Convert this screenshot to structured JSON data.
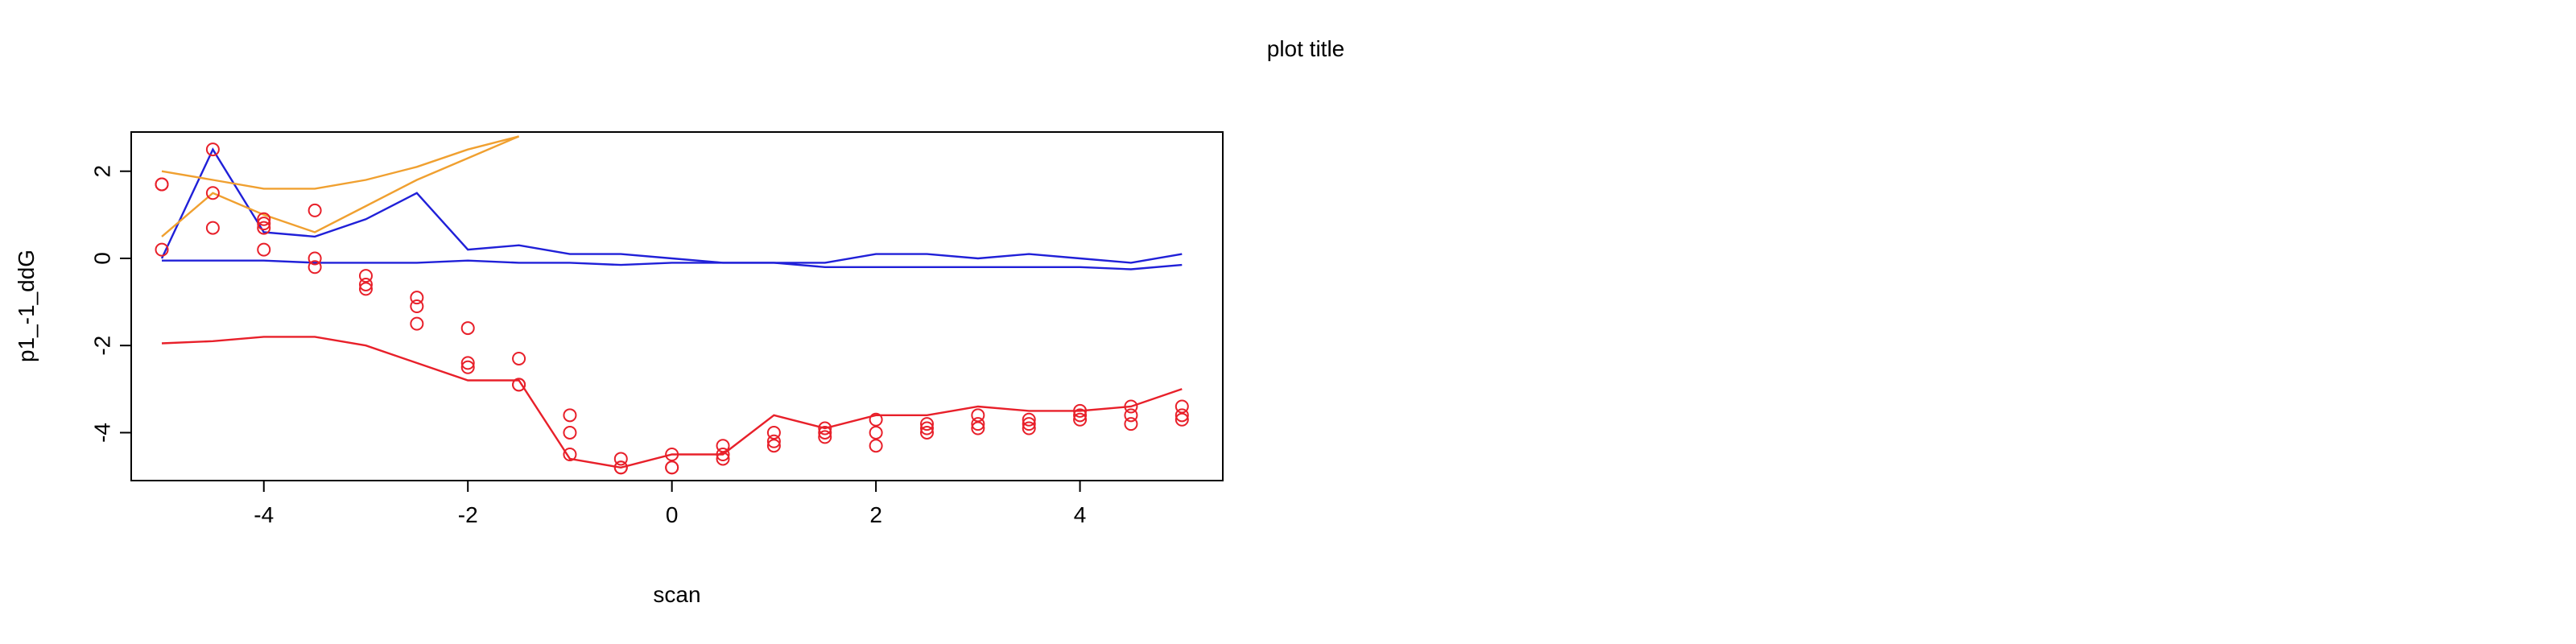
{
  "chart_data": {
    "type": "line",
    "title": "plot title",
    "xlabel": "scan",
    "ylabel": "p1_-1_ddG",
    "xlim": [
      -5.3,
      5.4
    ],
    "ylim": [
      -5.1,
      2.9
    ],
    "xticks": [
      -4,
      -2,
      0,
      2,
      4
    ],
    "yticks": [
      -4,
      -2,
      0,
      2
    ],
    "grid": false,
    "points": {
      "name": "",
      "color": "#e8202a",
      "x": [
        -5,
        -5,
        -5,
        -4.5,
        -4.5,
        -4.5,
        -4,
        -4,
        -4,
        -4,
        -3.5,
        -3.5,
        -3.5,
        -3,
        -3,
        -3,
        -2.5,
        -2.5,
        -2.5,
        -2,
        -2,
        -2,
        -1.5,
        -1.5,
        -1.5,
        -1,
        -1,
        -1,
        -0.5,
        -0.5,
        -0.5,
        0,
        0,
        0,
        0.5,
        0.5,
        0.5,
        1,
        1,
        1,
        1.5,
        1.5,
        1.5,
        2,
        2,
        2,
        2.5,
        2.5,
        2.5,
        3,
        3,
        3,
        3.5,
        3.5,
        3.5,
        4,
        4,
        4,
        4.5,
        4.5,
        4.5,
        5,
        5,
        5
      ],
      "y": [
        1.7,
        1.7,
        0.2,
        2.5,
        1.5,
        0.7,
        0.9,
        0.8,
        0.7,
        0.2,
        1.1,
        0.0,
        -0.2,
        -0.4,
        -0.6,
        -0.7,
        -0.9,
        -1.1,
        -1.5,
        -1.6,
        -2.4,
        -2.5,
        -2.3,
        -2.9,
        -2.9,
        -3.6,
        -4.0,
        -4.5,
        -4.6,
        -4.8,
        -4.8,
        -4.5,
        -4.8,
        -4.8,
        -4.3,
        -4.5,
        -4.6,
        -4.0,
        -4.2,
        -4.3,
        -3.9,
        -4.0,
        -4.1,
        -3.7,
        -4.0,
        -4.3,
        -3.8,
        -3.9,
        -4.0,
        -3.6,
        -3.8,
        -3.9,
        -3.7,
        -3.8,
        -3.9,
        -3.5,
        -3.6,
        -3.7,
        -3.4,
        -3.6,
        -3.8,
        -3.4,
        -3.6,
        -3.7
      ]
    },
    "series": [
      {
        "name": "",
        "color": "#e8202a",
        "x": [
          -5,
          -4.5,
          -4,
          -3.5,
          -3,
          -2.5,
          -2,
          -1.5,
          -1,
          -0.5,
          0,
          0.5,
          1,
          1.5,
          2,
          2.5,
          3,
          3.5,
          4,
          4.5,
          5
        ],
        "y": [
          -1.95,
          -1.9,
          -1.8,
          -1.8,
          -2.0,
          -2.4,
          -2.8,
          -2.8,
          -4.6,
          -4.8,
          -4.5,
          -4.5,
          -3.6,
          -3.9,
          -3.6,
          -3.6,
          -3.4,
          -3.5,
          -3.5,
          -3.4,
          -3.0
        ]
      },
      {
        "name": "",
        "color": "#2020d8",
        "x": [
          -5,
          -4.5,
          -4,
          -3.5,
          -3,
          -2.5,
          -2,
          -1.5,
          -1,
          -0.5,
          0,
          0.5,
          1,
          1.5,
          2,
          2.5,
          3,
          3.5,
          4,
          4.5,
          5
        ],
        "y": [
          0.0,
          2.5,
          0.6,
          0.5,
          0.9,
          1.5,
          0.2,
          0.3,
          0.1,
          0.1,
          0.0,
          -0.1,
          -0.1,
          -0.1,
          0.1,
          0.1,
          0.0,
          0.1,
          0.0,
          -0.1,
          0.1
        ]
      },
      {
        "name": "",
        "color": "#2020d8",
        "x": [
          -5,
          -4.5,
          -4,
          -3.5,
          -3,
          -2.5,
          -2,
          -1.5,
          -1,
          -0.5,
          0,
          0.5,
          1,
          1.5,
          2,
          2.5,
          3,
          3.5,
          4,
          4.5,
          5
        ],
        "y": [
          -0.05,
          -0.05,
          -0.05,
          -0.1,
          -0.1,
          -0.1,
          -0.05,
          -0.1,
          -0.1,
          -0.15,
          -0.1,
          -0.1,
          -0.1,
          -0.2,
          -0.2,
          -0.2,
          -0.2,
          -0.2,
          -0.2,
          -0.25,
          -0.15
        ]
      },
      {
        "name": "",
        "color": "#f0a030",
        "x": [
          -5,
          -4.5,
          -4,
          -3.5,
          -3,
          -2.5,
          -2,
          -1.5
        ],
        "y": [
          2.0,
          1.8,
          1.6,
          1.6,
          1.8,
          2.1,
          2.5,
          2.8
        ]
      },
      {
        "name": "",
        "color": "#f0a030",
        "x": [
          -5,
          -4.5,
          -4,
          -3.5,
          -3,
          -2.5,
          -2,
          -1.5
        ],
        "y": [
          0.5,
          1.5,
          1.0,
          0.6,
          1.2,
          1.8,
          2.3,
          2.8
        ]
      }
    ]
  }
}
